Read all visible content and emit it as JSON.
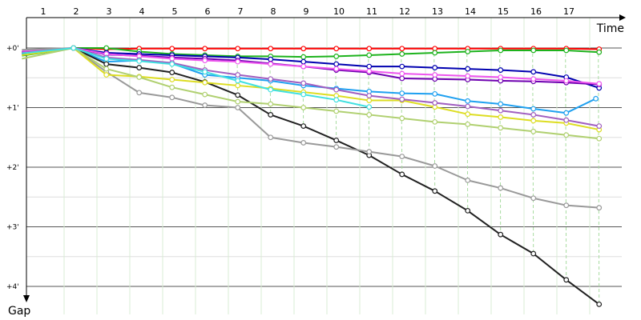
{
  "chart_data": {
    "type": "line",
    "title": "",
    "xlabel": "Time",
    "ylabel": "Gap",
    "x_axis_position": "top",
    "y_axis_inverted": true,
    "laps": [
      1,
      2,
      3,
      4,
      5,
      6,
      7,
      8,
      9,
      10,
      11,
      12,
      13,
      14,
      15,
      16,
      17
    ],
    "gap_ticks": [
      "+0'",
      "+1'",
      "+2'",
      "+3'",
      "+4'"
    ],
    "ylim_minutes": [
      -0.3,
      4.3
    ],
    "xlim_laps": [
      0.3,
      19.4
    ],
    "grid": true,
    "series": [
      {
        "color": "#ff0000",
        "x": [
          0.35,
          1.92,
          2.92,
          3.92,
          4.92,
          5.92,
          6.92,
          7.92,
          8.92,
          9.92,
          10.92,
          11.92,
          12.92,
          13.92,
          14.92,
          15.92,
          16.92,
          17.92
        ],
        "y": [
          0.07,
          0.0,
          0.02,
          0.01,
          0.01,
          0.01,
          0.01,
          0.01,
          0.01,
          0.01,
          0.01,
          0.01,
          0.01,
          0.01,
          0.01,
          0.01,
          0.01,
          0.02
        ]
      },
      {
        "color": "#1db31d",
        "x": [
          0.35,
          1.92,
          2.92,
          3.92,
          4.92,
          5.92,
          6.92,
          7.92,
          8.92,
          9.92,
          10.92,
          11.92,
          12.92,
          13.92,
          14.92,
          15.92,
          16.92,
          17.92
        ],
        "y": [
          0.13,
          0.0,
          0.0,
          0.06,
          0.1,
          0.12,
          0.14,
          0.14,
          0.15,
          0.14,
          0.12,
          0.1,
          0.08,
          0.06,
          0.04,
          0.04,
          0.04,
          0.07
        ]
      },
      {
        "color": "#0000b0",
        "x": [
          0.35,
          1.92,
          2.92,
          3.92,
          4.92,
          5.92,
          6.92,
          7.92,
          8.92,
          9.92,
          10.92,
          11.92,
          12.92,
          13.92,
          14.92,
          15.92,
          16.92,
          17.92
        ],
        "y": [
          0.07,
          0.0,
          0.08,
          0.1,
          0.12,
          0.14,
          0.16,
          0.19,
          0.23,
          0.27,
          0.31,
          0.31,
          0.33,
          0.35,
          0.37,
          0.4,
          0.49,
          0.67
        ]
      },
      {
        "color": "#6e00b0",
        "x": [
          0.35,
          1.92,
          2.92,
          3.92,
          4.92,
          5.92,
          6.92,
          7.92,
          8.92,
          9.92,
          10.92,
          11.92,
          12.92,
          13.92,
          14.92,
          15.92,
          16.92,
          17.92
        ],
        "y": [
          0.07,
          0.0,
          0.11,
          0.13,
          0.16,
          0.18,
          0.21,
          0.26,
          0.31,
          0.37,
          0.41,
          0.51,
          0.52,
          0.53,
          0.55,
          0.56,
          0.58,
          0.61
        ]
      },
      {
        "color": "#ee55ee",
        "x": [
          0.35,
          1.92,
          2.92,
          3.92,
          4.92,
          5.92,
          6.92,
          7.92,
          8.92,
          9.92,
          10.92,
          11.92,
          12.92,
          13.92,
          14.92,
          15.92,
          16.92,
          17.92
        ],
        "y": [
          0.05,
          0.0,
          0.1,
          0.14,
          0.18,
          0.21,
          0.23,
          0.27,
          0.31,
          0.35,
          0.39,
          0.43,
          0.45,
          0.47,
          0.49,
          0.52,
          0.55,
          0.6
        ]
      },
      {
        "color": "#1ea0f0",
        "x": [
          0.35,
          1.92,
          2.92,
          3.92,
          4.92,
          5.92,
          6.92,
          7.92,
          8.92,
          9.92,
          10.92,
          11.92,
          12.92,
          13.92,
          14.92,
          15.92,
          16.92,
          17.82
        ],
        "y": [
          0.1,
          0.0,
          0.23,
          0.21,
          0.26,
          0.45,
          0.5,
          0.55,
          0.63,
          0.68,
          0.73,
          0.76,
          0.77,
          0.89,
          0.94,
          1.02,
          1.09,
          0.85
        ]
      },
      {
        "color": "#202020",
        "x": [
          0.35,
          1.92,
          2.92,
          3.92,
          4.92,
          5.92,
          6.92,
          7.92,
          8.92,
          9.92,
          10.92,
          11.92,
          12.92,
          13.92,
          14.92,
          15.92,
          16.92,
          17.92
        ],
        "y": [
          0.1,
          0.0,
          0.27,
          0.33,
          0.41,
          0.57,
          0.79,
          1.12,
          1.31,
          1.55,
          1.8,
          2.12,
          2.4,
          2.73,
          3.13,
          3.45,
          3.89,
          4.3
        ]
      },
      {
        "color": "#999999",
        "x": [
          0.35,
          1.92,
          2.92,
          3.92,
          4.92,
          5.92,
          6.92,
          7.92,
          8.92,
          9.92,
          10.92,
          11.92,
          12.92,
          13.92,
          14.92,
          15.92,
          16.92,
          17.92
        ],
        "y": [
          0.03,
          0.0,
          0.4,
          0.75,
          0.83,
          0.96,
          1.0,
          1.5,
          1.59,
          1.66,
          1.74,
          1.82,
          1.98,
          2.22,
          2.35,
          2.52,
          2.64,
          2.68
        ]
      },
      {
        "color": "#dddd22",
        "x": [
          0.35,
          1.92,
          2.92,
          3.92,
          4.92,
          5.92,
          6.92,
          7.92,
          8.92,
          9.92,
          10.92,
          11.92,
          12.92,
          13.92,
          14.92,
          15.92,
          16.92,
          17.92
        ],
        "y": [
          0.12,
          0.0,
          0.45,
          0.48,
          0.53,
          0.58,
          0.63,
          0.68,
          0.74,
          0.8,
          0.88,
          0.88,
          0.99,
          1.11,
          1.16,
          1.22,
          1.26,
          1.37
        ]
      },
      {
        "color": "#a05ec0",
        "x": [
          0.35,
          1.92,
          2.92,
          3.92,
          4.92,
          5.92,
          6.92,
          7.92,
          8.92,
          9.92,
          10.92,
          11.92,
          12.92,
          13.92,
          14.92,
          15.92,
          16.92,
          17.92
        ],
        "y": [
          0.08,
          0.0,
          0.16,
          0.2,
          0.25,
          0.37,
          0.45,
          0.52,
          0.59,
          0.7,
          0.8,
          0.86,
          0.92,
          0.98,
          1.05,
          1.12,
          1.21,
          1.31
        ]
      },
      {
        "color": "#b0d070",
        "x": [
          0.35,
          1.92,
          2.92,
          3.92,
          4.92,
          5.92,
          6.92,
          7.92,
          8.92,
          9.92,
          10.92,
          11.92,
          12.92,
          13.92,
          14.92,
          15.92,
          16.92,
          17.92
        ],
        "y": [
          0.18,
          0.0,
          0.35,
          0.49,
          0.66,
          0.78,
          0.9,
          0.94,
          1.0,
          1.06,
          1.12,
          1.18,
          1.24,
          1.28,
          1.34,
          1.4,
          1.46,
          1.52
        ]
      },
      {
        "color": "#40e0e0",
        "x": [
          0.35,
          1.92,
          2.92,
          3.92,
          4.92,
          5.92,
          6.92,
          7.92,
          8.92,
          9.92,
          10.92
        ],
        "y": [
          0.09,
          0.0,
          0.18,
          0.22,
          0.27,
          0.4,
          0.55,
          0.7,
          0.78,
          0.87,
          0.99
        ]
      }
    ]
  }
}
